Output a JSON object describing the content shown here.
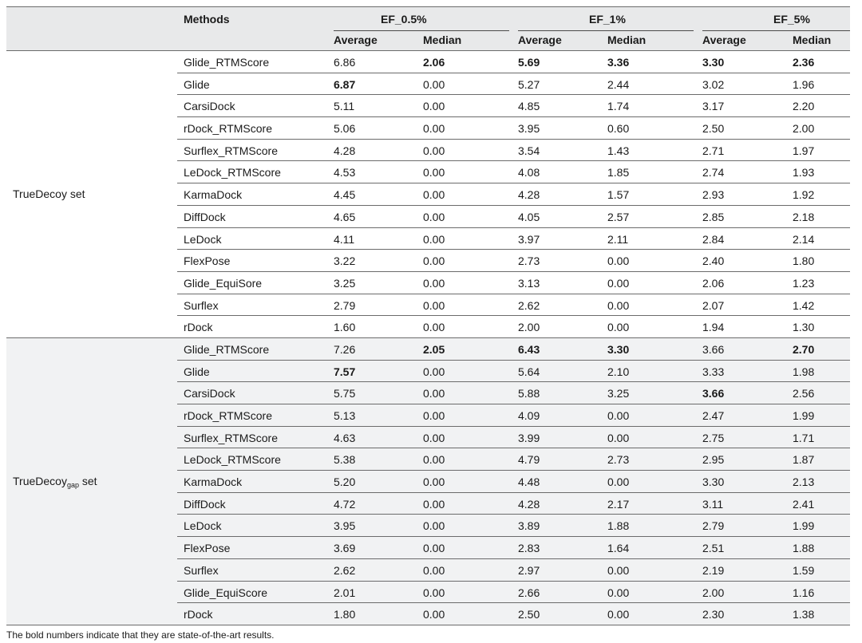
{
  "header": {
    "methods": "Methods",
    "groups": [
      "EF_0.5%",
      "EF_1%",
      "EF_5%"
    ],
    "average": "Average",
    "median": "Median"
  },
  "groups": [
    {
      "label": "TrueDecoy set",
      "label_base": "TrueDecoy",
      "label_sub": "",
      "label_suffix": " set",
      "rows": [
        {
          "method": "Glide_RTMScore",
          "values": [
            "6.86",
            "2.06",
            "5.69",
            "3.36",
            "3.30",
            "2.36"
          ],
          "bold": [
            false,
            true,
            true,
            true,
            true,
            true
          ]
        },
        {
          "method": "Glide",
          "values": [
            "6.87",
            "0.00",
            "5.27",
            "2.44",
            "3.02",
            "1.96"
          ],
          "bold": [
            true,
            false,
            false,
            false,
            false,
            false
          ]
        },
        {
          "method": "CarsiDock",
          "values": [
            "5.11",
            "0.00",
            "4.85",
            "1.74",
            "3.17",
            "2.20"
          ],
          "bold": [
            false,
            false,
            false,
            false,
            false,
            false
          ]
        },
        {
          "method": "rDock_RTMScore",
          "values": [
            "5.06",
            "0.00",
            "3.95",
            "0.60",
            "2.50",
            "2.00"
          ],
          "bold": [
            false,
            false,
            false,
            false,
            false,
            false
          ]
        },
        {
          "method": "Surflex_RTMScore",
          "values": [
            "4.28",
            "0.00",
            "3.54",
            "1.43",
            "2.71",
            "1.97"
          ],
          "bold": [
            false,
            false,
            false,
            false,
            false,
            false
          ]
        },
        {
          "method": "LeDock_RTMScore",
          "values": [
            "4.53",
            "0.00",
            "4.08",
            "1.85",
            "2.74",
            "1.93"
          ],
          "bold": [
            false,
            false,
            false,
            false,
            false,
            false
          ]
        },
        {
          "method": "KarmaDock",
          "values": [
            "4.45",
            "0.00",
            "4.28",
            "1.57",
            "2.93",
            "1.92"
          ],
          "bold": [
            false,
            false,
            false,
            false,
            false,
            false
          ]
        },
        {
          "method": "DiffDock",
          "values": [
            "4.65",
            "0.00",
            "4.05",
            "2.57",
            "2.85",
            "2.18"
          ],
          "bold": [
            false,
            false,
            false,
            false,
            false,
            false
          ]
        },
        {
          "method": "LeDock",
          "values": [
            "4.11",
            "0.00",
            "3.97",
            "2.11",
            "2.84",
            "2.14"
          ],
          "bold": [
            false,
            false,
            false,
            false,
            false,
            false
          ]
        },
        {
          "method": "FlexPose",
          "values": [
            "3.22",
            "0.00",
            "2.73",
            "0.00",
            "2.40",
            "1.80"
          ],
          "bold": [
            false,
            false,
            false,
            false,
            false,
            false
          ]
        },
        {
          "method": "Glide_EquiSore",
          "values": [
            "3.25",
            "0.00",
            "3.13",
            "0.00",
            "2.06",
            "1.23"
          ],
          "bold": [
            false,
            false,
            false,
            false,
            false,
            false
          ]
        },
        {
          "method": "Surflex",
          "values": [
            "2.79",
            "0.00",
            "2.62",
            "0.00",
            "2.07",
            "1.42"
          ],
          "bold": [
            false,
            false,
            false,
            false,
            false,
            false
          ]
        },
        {
          "method": "rDock",
          "values": [
            "1.60",
            "0.00",
            "2.00",
            "0.00",
            "1.94",
            "1.30"
          ],
          "bold": [
            false,
            false,
            false,
            false,
            false,
            false
          ]
        }
      ]
    },
    {
      "label": "TrueDecoy gap set",
      "label_base": "TrueDecoy",
      "label_sub": "gap",
      "label_suffix": " set",
      "rows": [
        {
          "method": "Glide_RTMScore",
          "values": [
            "7.26",
            "2.05",
            "6.43",
            "3.30",
            "3.66",
            "2.70"
          ],
          "bold": [
            false,
            true,
            true,
            true,
            false,
            true
          ]
        },
        {
          "method": "Glide",
          "values": [
            "7.57",
            "0.00",
            "5.64",
            "2.10",
            "3.33",
            "1.98"
          ],
          "bold": [
            true,
            false,
            false,
            false,
            false,
            false
          ]
        },
        {
          "method": "CarsiDock",
          "values": [
            "5.75",
            "0.00",
            "5.88",
            "3.25",
            "3.66",
            "2.56"
          ],
          "bold": [
            false,
            false,
            false,
            false,
            true,
            false
          ]
        },
        {
          "method": "rDock_RTMScore",
          "values": [
            "5.13",
            "0.00",
            "4.09",
            "0.00",
            "2.47",
            "1.99"
          ],
          "bold": [
            false,
            false,
            false,
            false,
            false,
            false
          ]
        },
        {
          "method": "Surflex_RTMScore",
          "values": [
            "4.63",
            "0.00",
            "3.99",
            "0.00",
            "2.75",
            "1.71"
          ],
          "bold": [
            false,
            false,
            false,
            false,
            false,
            false
          ]
        },
        {
          "method": "LeDock_RTMScore",
          "values": [
            "5.38",
            "0.00",
            "4.79",
            "2.73",
            "2.95",
            "1.87"
          ],
          "bold": [
            false,
            false,
            false,
            false,
            false,
            false
          ]
        },
        {
          "method": "KarmaDock",
          "values": [
            "5.20",
            "0.00",
            "4.48",
            "0.00",
            "3.30",
            "2.13"
          ],
          "bold": [
            false,
            false,
            false,
            false,
            false,
            false
          ]
        },
        {
          "method": "DiffDock",
          "values": [
            "4.72",
            "0.00",
            "4.28",
            "2.17",
            "3.11",
            "2.41"
          ],
          "bold": [
            false,
            false,
            false,
            false,
            false,
            false
          ]
        },
        {
          "method": "LeDock",
          "values": [
            "3.95",
            "0.00",
            "3.89",
            "1.88",
            "2.79",
            "1.99"
          ],
          "bold": [
            false,
            false,
            false,
            false,
            false,
            false
          ]
        },
        {
          "method": "FlexPose",
          "values": [
            "3.69",
            "0.00",
            "2.83",
            "1.64",
            "2.51",
            "1.88"
          ],
          "bold": [
            false,
            false,
            false,
            false,
            false,
            false
          ]
        },
        {
          "method": "Surflex",
          "values": [
            "2.62",
            "0.00",
            "2.97",
            "0.00",
            "2.19",
            "1.59"
          ],
          "bold": [
            false,
            false,
            false,
            false,
            false,
            false
          ]
        },
        {
          "method": "Glide_EquiScore",
          "values": [
            "2.01",
            "0.00",
            "2.66",
            "0.00",
            "2.00",
            "1.16"
          ],
          "bold": [
            false,
            false,
            false,
            false,
            false,
            false
          ]
        },
        {
          "method": "rDock",
          "values": [
            "1.80",
            "0.00",
            "2.50",
            "0.00",
            "2.30",
            "1.38"
          ],
          "bold": [
            false,
            false,
            false,
            false,
            false,
            false
          ]
        }
      ]
    }
  ],
  "footnote": "The bold numbers indicate that they are state-of-the-art results.",
  "colors": {
    "header_bg": "#e8e9ea",
    "shaded_row_bg": "#f1f2f3",
    "rule": "#6b6b6b"
  }
}
